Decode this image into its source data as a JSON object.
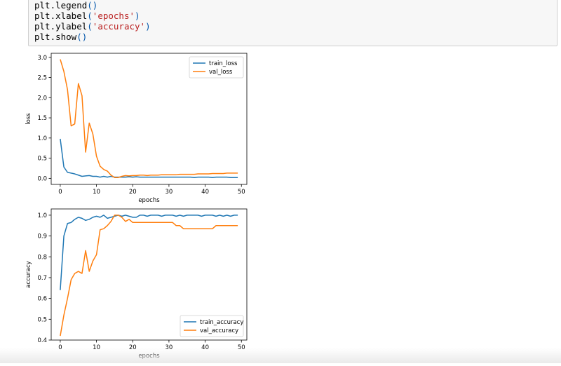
{
  "code_cell": {
    "lines": [
      {
        "fn": "plt.legend",
        "open": "(",
        "arg": "",
        "close": ")"
      },
      {
        "fn": "plt.xlabel",
        "open": "(",
        "arg": "'epochs'",
        "close": ")"
      },
      {
        "fn": "plt.ylabel",
        "open": "(",
        "arg": "'accuracy'",
        "close": ")"
      },
      {
        "fn": "plt.show",
        "open": "(",
        "arg": "",
        "close": ")"
      }
    ]
  },
  "colors": {
    "series_blue": "#1f77b4",
    "series_orange": "#ff7f0e"
  },
  "chart_data": [
    {
      "type": "line",
      "xlabel": "epochs",
      "ylabel": "loss",
      "xlim": [
        -2.5,
        51.5
      ],
      "ylim": [
        -0.15,
        3.1
      ],
      "xticks": [
        0,
        10,
        20,
        30,
        40,
        50
      ],
      "yticks": [
        0.0,
        0.5,
        1.0,
        1.5,
        2.0,
        2.5,
        3.0
      ],
      "ytick_labels": [
        "0.0",
        "0.5",
        "1.0",
        "1.5",
        "2.0",
        "2.5",
        "3.0"
      ],
      "legend": "top-right",
      "series": [
        {
          "name": "train_loss",
          "color": "#1f77b4",
          "values": [
            0.98,
            0.28,
            0.15,
            0.13,
            0.11,
            0.08,
            0.05,
            0.06,
            0.07,
            0.05,
            0.05,
            0.03,
            0.05,
            0.03,
            0.05,
            0.03,
            0.03,
            0.03,
            0.03,
            0.04,
            0.03,
            0.04,
            0.03,
            0.03,
            0.03,
            0.03,
            0.03,
            0.03,
            0.03,
            0.03,
            0.03,
            0.03,
            0.03,
            0.03,
            0.03,
            0.03,
            0.03,
            0.02,
            0.03,
            0.03,
            0.03,
            0.03,
            0.02,
            0.03,
            0.03,
            0.03,
            0.03,
            0.02,
            0.02,
            0.02
          ]
        },
        {
          "name": "val_loss",
          "color": "#ff7f0e",
          "values": [
            2.95,
            2.65,
            2.2,
            1.3,
            1.35,
            2.35,
            2.05,
            0.65,
            1.37,
            1.1,
            0.55,
            0.3,
            0.22,
            0.18,
            0.08,
            0.02,
            0.02,
            0.05,
            0.07,
            0.06,
            0.07,
            0.07,
            0.08,
            0.08,
            0.07,
            0.08,
            0.08,
            0.08,
            0.09,
            0.09,
            0.09,
            0.09,
            0.09,
            0.1,
            0.1,
            0.1,
            0.1,
            0.1,
            0.11,
            0.11,
            0.11,
            0.11,
            0.12,
            0.12,
            0.12,
            0.12,
            0.13,
            0.13,
            0.13,
            0.13
          ]
        }
      ]
    },
    {
      "type": "line",
      "xlabel": "epochs",
      "ylabel": "accuracy",
      "xlim": [
        -2.5,
        51.5
      ],
      "ylim": [
        0.4,
        1.03
      ],
      "xticks": [
        0,
        10,
        20,
        30,
        40,
        50
      ],
      "yticks": [
        0.4,
        0.5,
        0.6,
        0.7,
        0.8,
        0.9,
        1.0
      ],
      "ytick_labels": [
        "0.4",
        "0.5",
        "0.6",
        "0.7",
        "0.8",
        "0.9",
        "1.0"
      ],
      "legend": "bottom-right",
      "series": [
        {
          "name": "train_accuracy",
          "color": "#1f77b4",
          "values": [
            0.64,
            0.9,
            0.96,
            0.965,
            0.98,
            0.99,
            0.985,
            0.975,
            0.98,
            0.99,
            0.995,
            0.99,
            1.0,
            0.985,
            0.99,
            0.995,
            1.0,
            0.995,
            1.0,
            0.995,
            0.99,
            0.99,
            1.0,
            1.0,
            0.995,
            1.0,
            1.0,
            1.0,
            0.995,
            1.0,
            1.0,
            1.0,
            0.995,
            1.0,
            0.995,
            1.0,
            1.0,
            1.0,
            1.0,
            0.995,
            1.0,
            1.0,
            1.0,
            0.995,
            1.0,
            0.995,
            1.0,
            0.995,
            1.0,
            1.0
          ]
        },
        {
          "name": "val_accuracy",
          "color": "#ff7f0e",
          "values": [
            0.42,
            0.52,
            0.6,
            0.69,
            0.72,
            0.73,
            0.72,
            0.83,
            0.73,
            0.78,
            0.81,
            0.93,
            0.935,
            0.95,
            0.97,
            1.0,
            1.0,
            0.99,
            0.97,
            0.98,
            0.965,
            0.965,
            0.965,
            0.965,
            0.965,
            0.965,
            0.965,
            0.965,
            0.965,
            0.965,
            0.965,
            0.965,
            0.95,
            0.95,
            0.935,
            0.935,
            0.935,
            0.935,
            0.935,
            0.935,
            0.935,
            0.935,
            0.935,
            0.95,
            0.95,
            0.95,
            0.95,
            0.95,
            0.95,
            0.95
          ]
        }
      ]
    }
  ]
}
